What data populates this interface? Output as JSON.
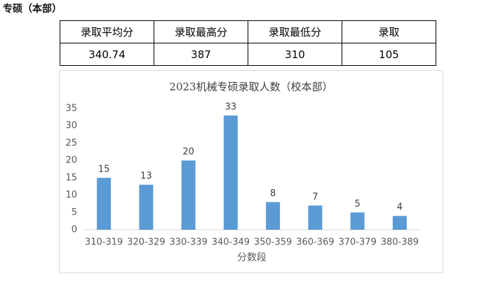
{
  "header": {
    "title": "专硕（本部）"
  },
  "table": {
    "header": [
      "录取平均分",
      "录取最高分",
      "录取最低分",
      "录取"
    ],
    "rows": [
      [
        340.74,
        387,
        310,
        105
      ]
    ]
  },
  "chart_data": {
    "type": "bar",
    "title": "2023机械专硕录取人数（校本部）",
    "x_label": "分数段",
    "categories": [
      "310-319",
      "320-329",
      "330-339",
      "340-349",
      "350-359",
      "360-369",
      "370-379",
      "380-389"
    ],
    "values": [
      15,
      13,
      20,
      33,
      8,
      7,
      5,
      4
    ],
    "color": "#5b9bd5",
    "ylim": [
      0,
      35
    ],
    "yticks": [
      0,
      5,
      10,
      15,
      20,
      25,
      30,
      35
    ],
    "grid": false,
    "data_labels": true
  }
}
